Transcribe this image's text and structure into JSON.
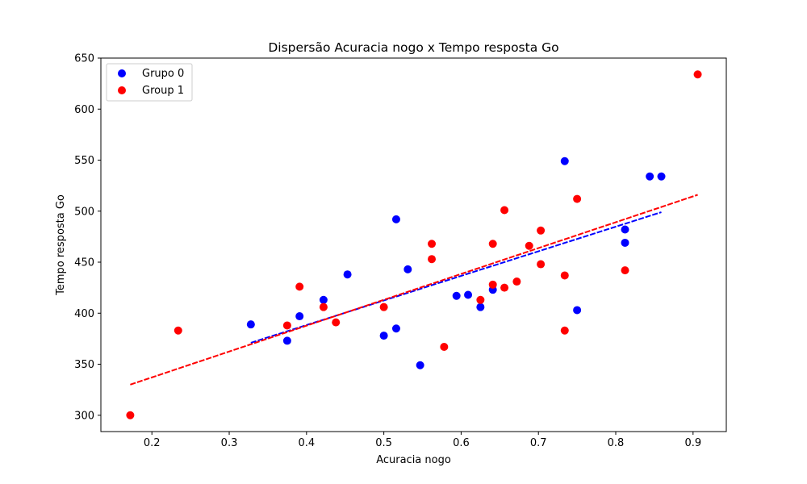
{
  "chart_data": {
    "type": "scatter",
    "title": "Dispersão Acuracia nogo x Tempo resposta Go",
    "xlabel": "Acuracia nogo",
    "ylabel": "Tempo resposta Go",
    "xlim": [
      0.134,
      0.943
    ],
    "ylim": [
      284,
      650
    ],
    "xticks": [
      0.2,
      0.3,
      0.4,
      0.5,
      0.6,
      0.7,
      0.8,
      0.9
    ],
    "yticks": [
      300,
      350,
      400,
      450,
      500,
      550,
      600,
      650
    ],
    "xtick_labels": [
      "0.2",
      "0.3",
      "0.4",
      "0.5",
      "0.6",
      "0.7",
      "0.8",
      "0.9"
    ],
    "ytick_labels": [
      "300",
      "350",
      "400",
      "450",
      "500",
      "550",
      "600",
      "650"
    ],
    "grid": false,
    "legend_position": "top-left",
    "series": [
      {
        "name": "Grupo 0",
        "color": "#0000ff",
        "points": [
          [
            0.328,
            389
          ],
          [
            0.375,
            373
          ],
          [
            0.391,
            397
          ],
          [
            0.422,
            413
          ],
          [
            0.453,
            438
          ],
          [
            0.5,
            378
          ],
          [
            0.516,
            385
          ],
          [
            0.516,
            492
          ],
          [
            0.531,
            443
          ],
          [
            0.547,
            349
          ],
          [
            0.594,
            417
          ],
          [
            0.609,
            418
          ],
          [
            0.625,
            406
          ],
          [
            0.641,
            423
          ],
          [
            0.734,
            549
          ],
          [
            0.75,
            403
          ],
          [
            0.812,
            482
          ],
          [
            0.812,
            469
          ],
          [
            0.844,
            534
          ],
          [
            0.859,
            534
          ]
        ],
        "trendline": {
          "x": [
            0.328,
            0.859
          ],
          "y": [
            371,
            499
          ],
          "style": "dashed"
        }
      },
      {
        "name": "Group 1",
        "color": "#ff0000",
        "points": [
          [
            0.172,
            300
          ],
          [
            0.234,
            383
          ],
          [
            0.375,
            388
          ],
          [
            0.391,
            426
          ],
          [
            0.422,
            406
          ],
          [
            0.438,
            391
          ],
          [
            0.5,
            406
          ],
          [
            0.562,
            468
          ],
          [
            0.562,
            453
          ],
          [
            0.578,
            367
          ],
          [
            0.625,
            413
          ],
          [
            0.641,
            468
          ],
          [
            0.641,
            428
          ],
          [
            0.656,
            425
          ],
          [
            0.656,
            501
          ],
          [
            0.672,
            431
          ],
          [
            0.688,
            466
          ],
          [
            0.703,
            481
          ],
          [
            0.703,
            448
          ],
          [
            0.734,
            437
          ],
          [
            0.734,
            383
          ],
          [
            0.75,
            512
          ],
          [
            0.812,
            442
          ],
          [
            0.906,
            634
          ]
        ],
        "trendline": {
          "x": [
            0.172,
            0.906
          ],
          "y": [
            330,
            516
          ],
          "style": "dashed"
        }
      }
    ]
  }
}
